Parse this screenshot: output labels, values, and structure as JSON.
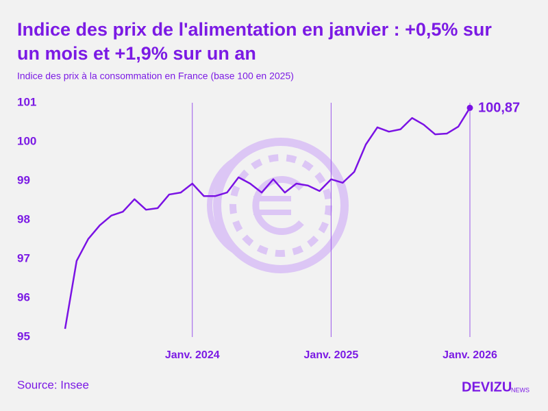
{
  "chart_data": {
    "type": "line",
    "title": [
      "Indice des prix de l'alimentation en janvier : +0,5% sur",
      "un mois et +1,9% sur un an"
    ],
    "subtitle": "Indice des prix à la consommation en France (base 100 en 2025)",
    "categories": [
      null,
      null,
      null,
      null,
      null,
      null,
      null,
      null,
      null,
      null,
      null,
      "Janv. 2024",
      null,
      null,
      null,
      null,
      null,
      null,
      null,
      null,
      null,
      null,
      null,
      "Janv. 2025",
      null,
      null,
      null,
      null,
      null,
      null,
      null,
      null,
      null,
      null,
      null,
      "Janv. 2026"
    ],
    "series": [
      {
        "name": null,
        "color": "#7a12e4",
        "values": [
          95.21,
          96.95,
          97.51,
          97.86,
          98.11,
          98.21,
          98.53,
          98.26,
          98.3,
          98.65,
          98.7,
          98.93,
          98.61,
          98.61,
          98.7,
          99.09,
          98.93,
          98.7,
          99.04,
          98.7,
          98.93,
          98.88,
          98.74,
          99.04,
          98.95,
          99.23,
          99.93,
          100.37,
          100.26,
          100.32,
          100.61,
          100.44,
          100.19,
          100.21,
          100.39,
          100.87
        ],
        "value_labels": [
          null,
          null,
          null,
          null,
          null,
          null,
          null,
          null,
          null,
          null,
          null,
          null,
          null,
          null,
          null,
          null,
          null,
          null,
          null,
          null,
          null,
          null,
          null,
          null,
          null,
          null,
          null,
          null,
          null,
          null,
          null,
          null,
          null,
          null,
          null,
          "100,87"
        ]
      }
    ],
    "ylim": [
      95,
      101
    ],
    "yticks": [
      95,
      96,
      97,
      98,
      99,
      100,
      101
    ],
    "source": "Source: Insee",
    "brand": "DEVIZU",
    "brand_suffix": "NEWS"
  }
}
